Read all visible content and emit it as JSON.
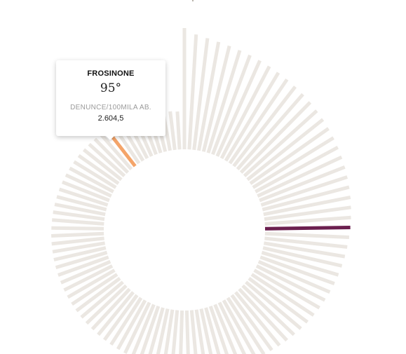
{
  "tooltip": {
    "province": "FROSINONE",
    "rank": "95°",
    "metric_label": "DENUNCE/100MILA AB.",
    "metric_value": "2.604,5"
  },
  "chart_data": {
    "type": "radial-bar",
    "metric": "DENUNCE/100MILA AB.",
    "bar_count": 105,
    "bar_color": "#ebe7e2",
    "highlight": [
      {
        "province": "FROSINONE",
        "rank": 95,
        "value": 2604.5,
        "color": "#f4a469"
      },
      {
        "rank": 27,
        "color": "#6b1f4f"
      }
    ]
  }
}
